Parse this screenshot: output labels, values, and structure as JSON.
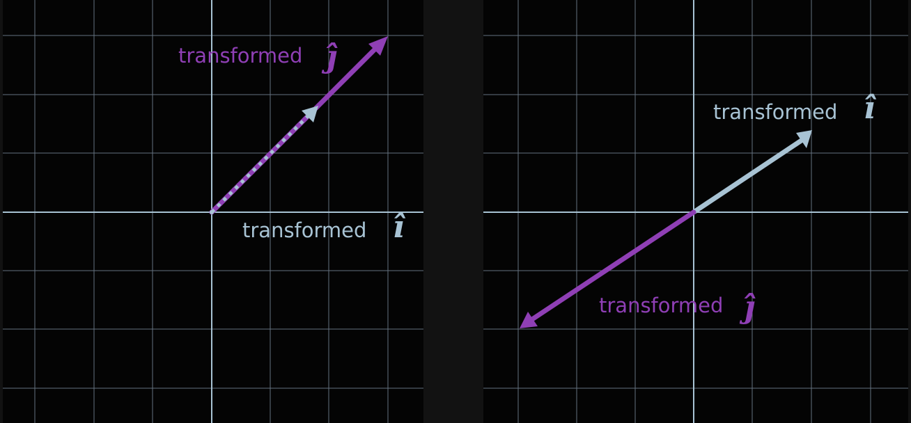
{
  "colors": {
    "background": "#121212",
    "panel": "#040404",
    "grid": "#7e8ea0",
    "axis": "#a8c3d4",
    "i_hat": "#a8c3d4",
    "j_hat": "#8f3fb5"
  },
  "left_panel": {
    "i_label": "transformed",
    "i_symbol": "î",
    "j_label": "transformed",
    "j_symbol": "ĵ",
    "i_vector": [
      1.75,
      1.75
    ],
    "j_vector": [
      3,
      3
    ]
  },
  "right_panel": {
    "i_label": "transformed",
    "i_symbol": "î",
    "j_label": "transformed",
    "j_symbol": "ĵ",
    "i_vector": [
      2,
      1.35
    ],
    "j_vector": [
      -3,
      -2
    ]
  }
}
